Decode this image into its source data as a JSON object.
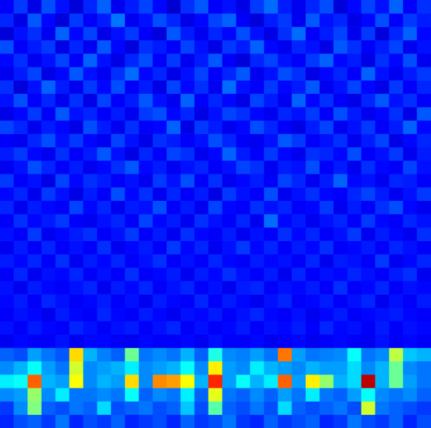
{
  "chart_data": {
    "type": "heatmap",
    "color": "jet",
    "grid": false,
    "tick_labels": false,
    "color_range": [
      0,
      100
    ],
    "cells": [
      [
        12,
        18,
        10,
        20,
        14,
        9,
        16,
        22,
        11,
        15,
        19,
        13,
        8,
        17,
        21,
        12,
        14,
        10,
        18,
        23,
        15,
        11,
        16,
        20,
        9,
        13,
        19,
        14,
        22,
        12,
        17
      ],
      [
        16,
        10,
        21,
        13,
        9,
        18,
        12,
        15,
        24,
        11,
        14,
        20,
        16,
        10,
        13,
        19,
        22,
        12,
        9,
        15,
        18,
        11,
        21,
        14,
        16,
        10,
        13,
        20,
        12,
        18,
        15
      ],
      [
        9,
        14,
        17,
        11,
        22,
        13,
        19,
        10,
        14,
        18,
        12,
        9,
        21,
        15,
        11,
        16,
        13,
        20,
        14,
        10,
        17,
        23,
        12,
        15,
        19,
        11,
        18,
        9,
        16,
        22,
        13
      ],
      [
        20,
        12,
        15,
        18,
        10,
        16,
        11,
        21,
        13,
        9,
        17,
        15,
        12,
        19,
        14,
        10,
        18,
        15,
        22,
        13,
        11,
        16,
        14,
        10,
        21,
        17,
        12,
        15,
        19,
        11,
        14
      ],
      [
        13,
        17,
        11,
        14,
        19,
        12,
        22,
        14,
        10,
        16,
        20,
        12,
        18,
        11,
        15,
        21,
        12,
        9,
        16,
        19,
        14,
        12,
        18,
        22,
        13,
        15,
        10,
        17,
        13,
        20,
        11
      ],
      [
        11,
        15,
        19,
        10,
        13,
        21,
        14,
        11,
        17,
        23,
        13,
        16,
        10,
        14,
        19,
        12,
        16,
        21,
        11,
        14,
        20,
        17,
        10,
        13,
        16,
        12,
        22,
        14,
        11,
        15,
        18
      ],
      [
        17,
        9,
        14,
        22,
        15,
        11,
        18,
        13,
        20,
        12,
        15,
        10,
        19,
        13,
        17,
        11,
        23,
        14,
        12,
        18,
        13,
        15,
        21,
        11,
        14,
        19,
        13,
        10,
        18,
        12,
        16
      ],
      [
        14,
        20,
        12,
        16,
        11,
        17,
        10,
        19,
        12,
        15,
        21,
        14,
        11,
        22,
        12,
        16,
        13,
        10,
        19,
        15,
        11,
        22,
        13,
        17,
        12,
        10,
        16,
        21,
        14,
        17,
        12
      ],
      [
        10,
        13,
        18,
        12,
        21,
        14,
        16,
        12,
        15,
        11,
        18,
        20,
        13,
        16,
        10,
        14,
        19,
        17,
        13,
        11,
        16,
        14,
        18,
        12,
        20,
        15,
        11,
        13,
        17,
        10,
        21
      ],
      [
        19,
        16,
        11,
        15,
        13,
        10,
        20,
        15,
        11,
        17,
        12,
        13,
        22,
        10,
        18,
        15,
        11,
        13,
        20,
        16,
        12,
        10,
        15,
        19,
        11,
        14,
        18,
        12,
        15,
        22,
        13
      ],
      [
        12,
        11,
        16,
        20,
        14,
        18,
        13,
        11,
        19,
        14,
        10,
        17,
        15,
        12,
        14,
        20,
        16,
        12,
        11,
        14,
        21,
        18,
        12,
        14,
        17,
        11,
        15,
        19,
        10,
        13,
        16
      ],
      [
        15,
        18,
        13,
        11,
        17,
        12,
        15,
        21,
        14,
        10,
        16,
        12,
        19,
        17,
        11,
        13,
        22,
        15,
        12,
        18,
        13,
        11,
        17,
        16,
        13,
        20,
        12,
        14,
        18,
        11,
        15
      ],
      [
        11,
        14,
        20,
        16,
        12,
        15,
        11,
        13,
        17,
        21,
        13,
        15,
        11,
        14,
        16,
        12,
        14,
        19,
        17,
        11,
        15,
        14,
        20,
        12,
        15,
        11,
        17,
        13,
        12,
        19,
        14
      ],
      [
        18,
        12,
        14,
        10,
        19,
        13,
        17,
        15,
        12,
        14,
        11,
        18,
        14,
        20,
        12,
        17,
        11,
        13,
        15,
        12,
        19,
        16,
        11,
        15,
        22,
        13,
        14,
        11,
        16,
        15,
        12
      ],
      [
        13,
        16,
        11,
        18,
        14,
        10,
        15,
        12,
        20,
        13,
        17,
        11,
        16,
        12,
        15,
        10,
        18,
        14,
        12,
        20,
        11,
        14,
        17,
        13,
        12,
        16,
        19,
        15,
        11,
        14,
        18
      ],
      [
        16,
        11,
        15,
        13,
        12,
        19,
        13,
        16,
        11,
        15,
        14,
        20,
        12,
        15,
        11,
        19,
        13,
        12,
        17,
        14,
        16,
        12,
        13,
        18,
        11,
        15,
        12,
        17,
        20,
        13,
        11
      ],
      [
        12,
        17,
        13,
        15,
        18,
        12,
        11,
        14,
        16,
        12,
        19,
        13,
        15,
        11,
        17,
        14,
        12,
        16,
        11,
        23,
        13,
        15,
        11,
        14,
        16,
        12,
        18,
        13,
        12,
        16,
        14
      ],
      [
        14,
        12,
        18,
        11,
        13,
        15,
        17,
        12,
        14,
        18,
        12,
        15,
        11,
        17,
        13,
        12,
        15,
        11,
        14,
        12,
        17,
        13,
        16,
        12,
        14,
        18,
        11,
        15,
        13,
        11,
        17
      ],
      [
        11,
        15,
        12,
        16,
        12,
        14,
        12,
        17,
        11,
        13,
        15,
        12,
        18,
        13,
        16,
        11,
        14,
        18,
        13,
        16,
        12,
        15,
        13,
        17,
        12,
        13,
        15,
        12,
        16,
        14,
        12
      ],
      [
        15,
        13,
        16,
        12,
        17,
        11,
        15,
        13,
        16,
        12,
        14,
        17,
        12,
        14,
        12,
        16,
        13,
        12,
        15,
        13,
        14,
        12,
        16,
        11,
        15,
        14,
        12,
        18,
        11,
        13,
        16
      ],
      [
        12,
        16,
        11,
        14,
        13,
        16,
        12,
        14,
        12,
        17,
        12,
        13,
        15,
        11,
        15,
        13,
        17,
        14,
        12,
        15,
        11,
        16,
        12,
        14,
        13,
        16,
        14,
        12,
        15,
        17,
        11
      ],
      [
        14,
        11,
        15,
        13,
        12,
        14,
        16,
        11,
        15,
        13,
        16,
        12,
        14,
        16,
        12,
        14,
        11,
        15,
        16,
        12,
        14,
        13,
        15,
        12,
        17,
        12,
        13,
        16,
        12,
        14,
        13
      ],
      [
        13,
        15,
        12,
        16,
        14,
        12,
        13,
        15,
        12,
        14,
        11,
        15,
        13,
        12,
        16,
        12,
        15,
        13,
        11,
        14,
        16,
        12,
        13,
        15,
        12,
        14,
        16,
        11,
        14,
        12,
        15
      ],
      [
        12,
        14,
        13,
        11,
        15,
        13,
        12,
        16,
        13,
        12,
        15,
        13,
        11,
        14,
        13,
        15,
        12,
        14,
        16,
        13,
        12,
        14,
        11,
        13,
        15,
        12,
        13,
        14,
        15,
        13,
        12
      ],
      [
        14,
        12,
        15,
        13,
        12,
        16,
        14,
        12,
        14,
        15,
        12,
        14,
        16,
        12,
        14,
        12,
        13,
        15,
        12,
        14,
        13,
        15,
        12,
        16,
        13,
        14,
        12,
        15,
        12,
        14,
        13
      ],
      [
        11,
        13,
        12,
        12,
        14,
        11,
        13,
        13,
        12,
        11,
        13,
        12,
        12,
        13,
        11,
        14,
        12,
        12,
        13,
        11,
        12,
        13,
        11,
        12,
        13,
        12,
        11,
        14,
        12,
        13,
        12
      ],
      [
        22,
        20,
        28,
        24,
        21,
        66,
        30,
        25,
        22,
        48,
        24,
        26,
        24,
        30,
        22,
        40,
        26,
        25,
        28,
        24,
        76,
        28,
        24,
        25,
        26,
        38,
        24,
        26,
        56,
        32,
        30
      ],
      [
        26,
        30,
        38,
        28,
        24,
        58,
        26,
        28,
        30,
        36,
        26,
        28,
        30,
        38,
        26,
        64,
        28,
        26,
        36,
        30,
        28,
        26,
        30,
        28,
        28,
        34,
        26,
        30,
        48,
        26,
        24
      ],
      [
        36,
        38,
        78,
        30,
        28,
        62,
        26,
        30,
        28,
        66,
        26,
        74,
        72,
        62,
        30,
        84,
        28,
        38,
        30,
        36,
        78,
        28,
        64,
        52,
        30,
        34,
        94,
        30,
        48,
        28,
        24
      ],
      [
        26,
        28,
        52,
        26,
        36,
        24,
        24,
        26,
        24,
        38,
        22,
        26,
        24,
        36,
        22,
        60,
        24,
        22,
        26,
        22,
        28,
        24,
        36,
        24,
        22,
        28,
        38,
        26,
        24,
        26,
        22
      ],
      [
        18,
        26,
        50,
        22,
        20,
        24,
        22,
        34,
        20,
        22,
        24,
        20,
        22,
        32,
        20,
        46,
        22,
        20,
        24,
        20,
        34,
        22,
        20,
        22,
        24,
        20,
        58,
        24,
        22,
        20,
        18
      ],
      [
        16,
        20,
        22,
        18,
        24,
        16,
        20,
        18,
        22,
        16,
        18,
        20,
        16,
        22,
        18,
        20,
        24,
        18,
        16,
        22,
        18,
        20,
        22,
        16,
        18,
        24,
        20,
        18,
        22,
        16,
        20
      ]
    ]
  }
}
